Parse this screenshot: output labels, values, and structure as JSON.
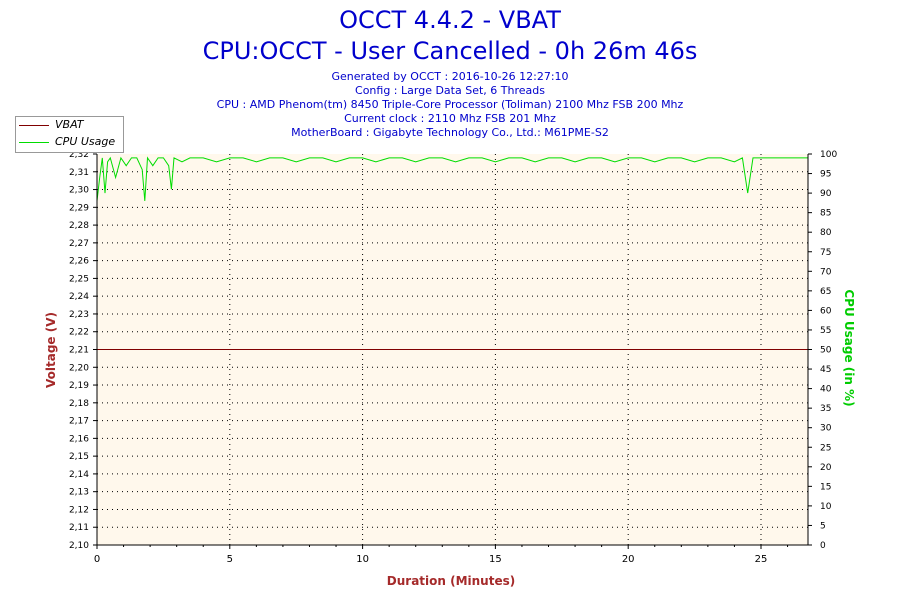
{
  "header": {
    "title": "OCCT 4.4.2 - VBAT",
    "subtitle": "CPU:OCCT - User Cancelled - 0h 26m 46s",
    "generated": "Generated by OCCT : 2016-10-26 12:27:10",
    "config": "Config : Large Data Set, 6 Threads",
    "cpu": "CPU : AMD Phenom(tm) 8450 Triple-Core Processor (Toliman) 2100 Mhz FSB 200 Mhz",
    "clock": "Current clock : 2110 Mhz FSB 201 Mhz",
    "motherboard": "MotherBoard : Gigabyte Technology Co., Ltd.: M61PME-S2"
  },
  "legend": [
    {
      "label": "VBAT",
      "color": "#800000"
    },
    {
      "label": "CPU Usage",
      "color": "#00dd00"
    }
  ],
  "chart_data": {
    "type": "line",
    "xlabel": "Duration (Minutes)",
    "ylabel": "Voltage (V)",
    "y2label": "CPU Usage (in %)",
    "xlim": [
      0,
      26.77
    ],
    "ylim": [
      2.1,
      2.32
    ],
    "y2lim": [
      0,
      100
    ],
    "xticks": [
      "0",
      "5",
      "10",
      "15",
      "20",
      "25"
    ],
    "yticks": [
      "2,10",
      "2,11",
      "2,12",
      "2,13",
      "2,14",
      "2,15",
      "2,16",
      "2,17",
      "2,18",
      "2,19",
      "2,20",
      "2,21",
      "2,22",
      "2,23",
      "2,24",
      "2,25",
      "2,26",
      "2,27",
      "2,28",
      "2,29",
      "2,30",
      "2,31",
      "2,32"
    ],
    "y2ticks": [
      "0",
      "5",
      "10",
      "15",
      "20",
      "25",
      "30",
      "35",
      "40",
      "45",
      "50",
      "55",
      "60",
      "65",
      "70",
      "75",
      "80",
      "85",
      "90",
      "95",
      "100"
    ],
    "grid": true,
    "legend_position": "top-left",
    "background_color": "#fff8ec",
    "axis_label_color_left": "#a52a2a",
    "axis_label_color_right": "#00cc00",
    "series": [
      {
        "name": "VBAT",
        "axis": "left",
        "color": "#800000",
        "x": [
          0,
          26.77
        ],
        "values": [
          2.21,
          2.21
        ]
      },
      {
        "name": "CPU Usage",
        "axis": "right",
        "color": "#00dd00",
        "x": [
          0,
          0.1,
          0.2,
          0.3,
          0.4,
          0.5,
          0.7,
          0.9,
          1.1,
          1.3,
          1.5,
          1.7,
          1.8,
          1.9,
          2.1,
          2.3,
          2.5,
          2.7,
          2.8,
          2.9,
          3.2,
          3.5,
          4,
          4.5,
          5,
          5.5,
          6,
          6.5,
          7,
          7.5,
          8,
          8.5,
          9,
          9.5,
          10,
          10.5,
          11,
          11.5,
          12,
          12.5,
          13,
          13.5,
          14,
          14.5,
          15,
          15.5,
          16,
          16.5,
          17,
          17.5,
          18,
          18.5,
          19,
          19.5,
          20,
          20.5,
          21,
          21.5,
          22,
          22.5,
          23,
          23.5,
          24,
          24.3,
          24.5,
          24.7,
          25,
          25.5,
          26,
          26.5,
          26.77
        ],
        "values": [
          88,
          94,
          99,
          90,
          98,
          99,
          94,
          99,
          97,
          99,
          99,
          96,
          88,
          99,
          97,
          99,
          99,
          97,
          91,
          99,
          98,
          99,
          99,
          98,
          99,
          99,
          98,
          99,
          99,
          98,
          99,
          99,
          98,
          99,
          99,
          98,
          99,
          99,
          98,
          99,
          99,
          98,
          99,
          99,
          98,
          99,
          99,
          98,
          99,
          99,
          98,
          99,
          99,
          98,
          99,
          99,
          98,
          99,
          99,
          98,
          99,
          99,
          98,
          99,
          90,
          99,
          99,
          99,
          99,
          99,
          99
        ]
      }
    ]
  }
}
